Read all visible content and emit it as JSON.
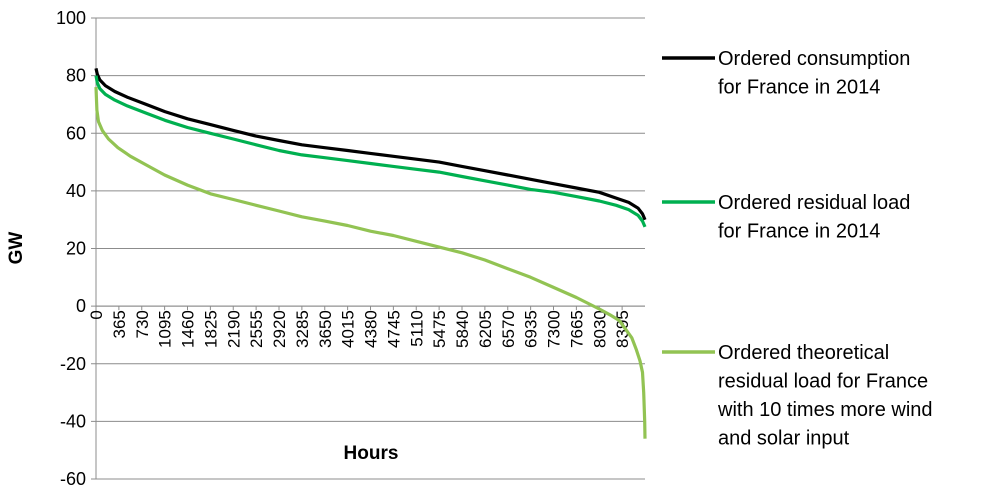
{
  "chart_data": {
    "type": "line",
    "title": "",
    "xlabel": "Hours",
    "ylabel": "GW",
    "ylim": [
      -60,
      100
    ],
    "yticks": [
      100,
      80,
      60,
      40,
      20,
      0,
      -20,
      -40,
      -60
    ],
    "xticks": [
      0,
      365,
      730,
      1095,
      1460,
      1825,
      2190,
      2555,
      2920,
      3285,
      3650,
      4015,
      4380,
      4745,
      5110,
      5475,
      5840,
      6205,
      6570,
      6935,
      7300,
      7665,
      8030,
      8395
    ],
    "xlim": [
      0,
      8760
    ],
    "grid": "horizontal",
    "legend_position": "right",
    "series": [
      {
        "name": "Ordered consumption for France in 2014",
        "legend_lines": [
          "Ordered consumption",
          "for France in 2014"
        ],
        "color": "#000000",
        "x": [
          0,
          20,
          60,
          150,
          300,
          500,
          800,
          1100,
          1460,
          1825,
          2190,
          2555,
          2920,
          3285,
          3650,
          4015,
          4380,
          4745,
          5110,
          5475,
          5840,
          6205,
          6570,
          6935,
          7300,
          7665,
          8030,
          8300,
          8500,
          8650,
          8720,
          8760
        ],
        "y": [
          82.5,
          80.5,
          78.5,
          76.5,
          74.5,
          72.5,
          70,
          67.5,
          65,
          63,
          61,
          59,
          57.5,
          56,
          55,
          54,
          53,
          52,
          51,
          50,
          48.5,
          47,
          45.5,
          44,
          42.5,
          41,
          39.5,
          37.5,
          36,
          34,
          32,
          30
        ]
      },
      {
        "name": "Ordered residual load for France in 2014",
        "legend_lines": [
          "Ordered residual load",
          "for France in 2014"
        ],
        "color": "#00B050",
        "x": [
          0,
          20,
          60,
          150,
          300,
          500,
          800,
          1100,
          1460,
          1825,
          2190,
          2555,
          2920,
          3285,
          3650,
          4015,
          4380,
          4745,
          5110,
          5475,
          5840,
          6205,
          6570,
          6935,
          7300,
          7665,
          8030,
          8300,
          8500,
          8650,
          8720,
          8760
        ],
        "y": [
          80,
          77.5,
          75.5,
          73.5,
          71.5,
          69.5,
          67,
          64.5,
          62,
          60,
          58,
          56,
          54,
          52.5,
          51.5,
          50.5,
          49.5,
          48.5,
          47.5,
          46.5,
          45,
          43.5,
          42,
          40.5,
          39.5,
          38,
          36.5,
          35,
          33.5,
          31.5,
          29.5,
          27.5
        ]
      },
      {
        "name": "Ordered theoretical residual load for France with 10 times more wind and solar input",
        "legend_lines": [
          "Ordered theoretical",
          "residual load for France",
          "with 10 times more wind",
          "and solar input"
        ],
        "color": "#92C353",
        "x": [
          0,
          15,
          40,
          100,
          200,
          350,
          550,
          800,
          1095,
          1460,
          1825,
          2190,
          2555,
          2920,
          3285,
          3650,
          4015,
          4380,
          4745,
          5110,
          5475,
          5840,
          6205,
          6570,
          6935,
          7300,
          7665,
          8030,
          8200,
          8350,
          8450,
          8550,
          8620,
          8680,
          8720,
          8740,
          8755,
          8760
        ],
        "y": [
          76,
          68,
          64,
          61,
          58,
          55,
          52,
          49,
          45.5,
          42,
          39,
          37,
          35,
          33,
          31,
          29.5,
          28,
          26,
          24.5,
          22.5,
          20.5,
          18.5,
          16,
          13,
          10,
          6.5,
          3,
          -1,
          -3,
          -5,
          -8,
          -11,
          -15,
          -19,
          -23,
          -30,
          -40,
          -46
        ]
      }
    ]
  }
}
